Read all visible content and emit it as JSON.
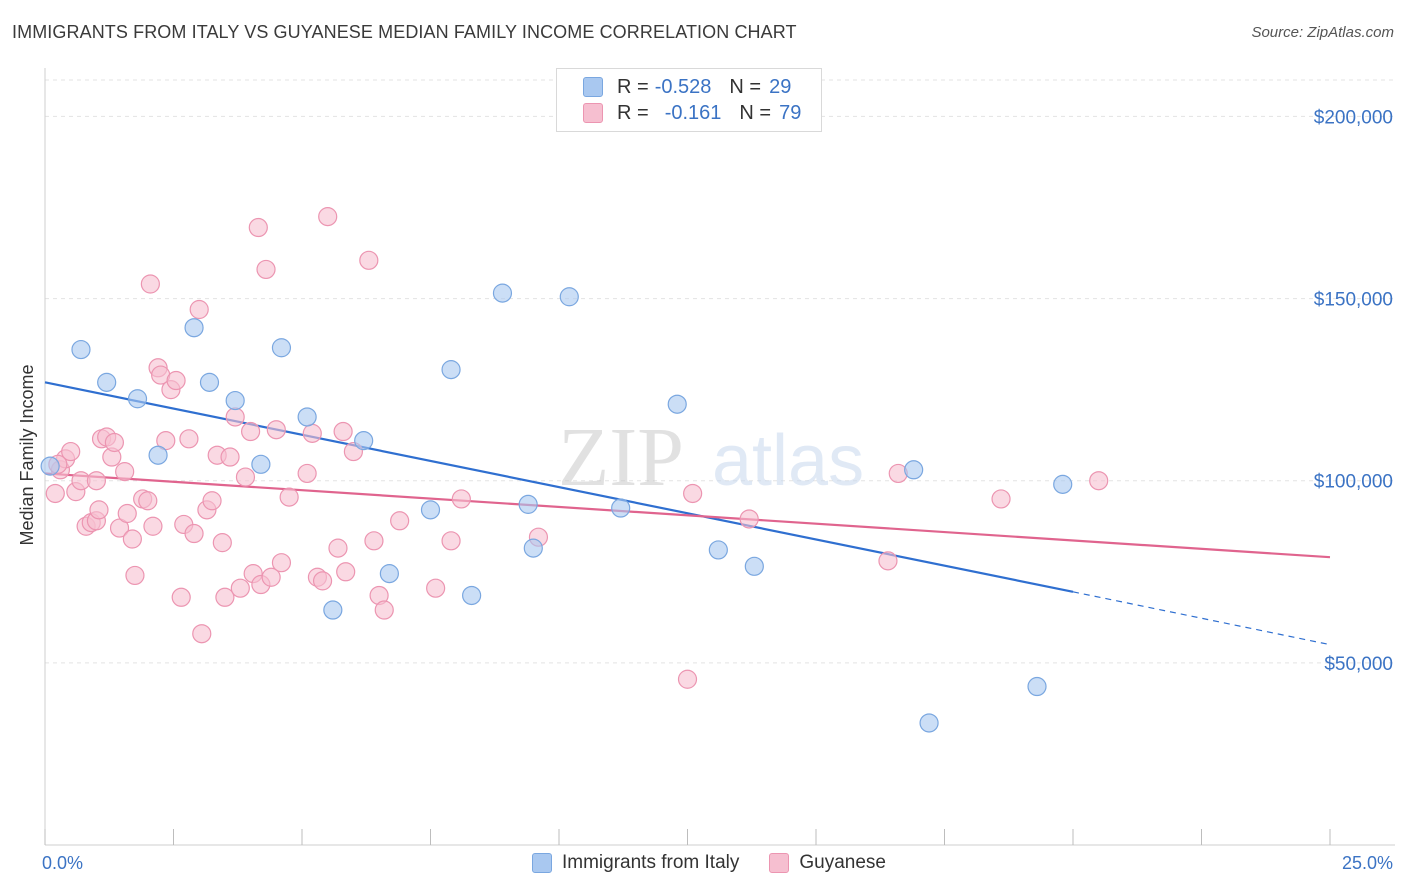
{
  "header": {
    "title": "IMMIGRANTS FROM ITALY VS GUYANESE MEDIAN FAMILY INCOME CORRELATION CHART",
    "source": "Source: ZipAtlas.com"
  },
  "legend": {
    "r_label": "R =",
    "n_label": "N =",
    "entries": [
      {
        "r": "-0.528",
        "n": "29"
      },
      {
        "r": "-0.161",
        "n": "79"
      }
    ]
  },
  "watermark": {
    "zip": "ZIP",
    "atlas": "atlas"
  },
  "chart_data": {
    "type": "scatter",
    "title": "IMMIGRANTS FROM ITALY VS GUYANESE MEDIAN FAMILY INCOME CORRELATION CHART",
    "xlabel": "",
    "ylabel": "Median Family Income",
    "xlim": [
      0,
      25
    ],
    "ylim": [
      0,
      210000
    ],
    "x_tick_labels": [
      "0.0%",
      "25.0%"
    ],
    "y_ticks": [
      50000,
      100000,
      150000,
      200000
    ],
    "y_tick_labels": [
      "$50,000",
      "$100,000",
      "$150,000",
      "$200,000"
    ],
    "grid": true,
    "colors": {
      "italy_fill": "#a9c8f0",
      "italy_stroke": "#7aa7e0",
      "italy_line": "#2f6fd0",
      "guyanese_fill": "#f6bfd0",
      "guyanese_stroke": "#ec95b1",
      "guyanese_line": "#e0648e",
      "tick": "#3b73c4"
    },
    "series": [
      {
        "name": "Immigrants from Italy",
        "r": -0.528,
        "n": 29,
        "trend": {
          "x0": 0,
          "y0": 127000,
          "x1": 20,
          "y1": 69500,
          "dash_to_x": 25,
          "dash_to_y": 55000
        },
        "points": [
          [
            0.1,
            104000
          ],
          [
            0.7,
            136000
          ],
          [
            1.2,
            127000
          ],
          [
            1.8,
            122500
          ],
          [
            2.2,
            107000
          ],
          [
            2.9,
            142000
          ],
          [
            3.2,
            127000
          ],
          [
            3.7,
            122000
          ],
          [
            4.2,
            104500
          ],
          [
            4.6,
            136500
          ],
          [
            5.1,
            117500
          ],
          [
            5.6,
            64500
          ],
          [
            6.2,
            111000
          ],
          [
            6.7,
            74500
          ],
          [
            7.5,
            92000
          ],
          [
            7.9,
            130500
          ],
          [
            8.3,
            68500
          ],
          [
            8.9,
            151500
          ],
          [
            9.4,
            93500
          ],
          [
            9.5,
            81500
          ],
          [
            10.2,
            150500
          ],
          [
            11.2,
            92500
          ],
          [
            12.3,
            121000
          ],
          [
            13.1,
            81000
          ],
          [
            13.8,
            76500
          ],
          [
            16.9,
            103000
          ],
          [
            17.2,
            33500
          ],
          [
            19.3,
            43500
          ],
          [
            19.8,
            99000
          ]
        ]
      },
      {
        "name": "Guyanese",
        "r": -0.161,
        "n": 79,
        "trend": {
          "x0": 0,
          "y0": 102000,
          "x1": 25,
          "y1": 79000
        },
        "points": [
          [
            0.2,
            96500
          ],
          [
            0.3,
            103000
          ],
          [
            0.4,
            106000
          ],
          [
            0.5,
            108000
          ],
          [
            0.6,
            97000
          ],
          [
            0.7,
            100000
          ],
          [
            0.8,
            87500
          ],
          [
            0.9,
            88500
          ],
          [
            1.0,
            89000
          ],
          [
            1.05,
            92000
          ],
          [
            1.1,
            111500
          ],
          [
            1.2,
            112000
          ],
          [
            1.3,
            106500
          ],
          [
            1.35,
            110500
          ],
          [
            1.45,
            87000
          ],
          [
            1.55,
            102500
          ],
          [
            1.6,
            91000
          ],
          [
            1.7,
            84000
          ],
          [
            1.75,
            74000
          ],
          [
            1.9,
            95000
          ],
          [
            2.0,
            94500
          ],
          [
            2.05,
            154000
          ],
          [
            2.1,
            87500
          ],
          [
            2.2,
            131000
          ],
          [
            2.25,
            129000
          ],
          [
            2.35,
            111000
          ],
          [
            2.45,
            125000
          ],
          [
            2.55,
            127500
          ],
          [
            2.65,
            68000
          ],
          [
            2.7,
            88000
          ],
          [
            2.8,
            111500
          ],
          [
            2.9,
            85500
          ],
          [
            3.0,
            147000
          ],
          [
            3.05,
            58000
          ],
          [
            3.15,
            92000
          ],
          [
            3.25,
            94500
          ],
          [
            3.35,
            107000
          ],
          [
            3.45,
            83000
          ],
          [
            3.5,
            68000
          ],
          [
            3.6,
            106500
          ],
          [
            3.7,
            117500
          ],
          [
            3.8,
            70500
          ],
          [
            3.9,
            101000
          ],
          [
            4.0,
            113500
          ],
          [
            4.05,
            74500
          ],
          [
            4.15,
            169500
          ],
          [
            4.2,
            71500
          ],
          [
            4.3,
            158000
          ],
          [
            4.4,
            73500
          ],
          [
            4.5,
            114000
          ],
          [
            4.6,
            77500
          ],
          [
            4.75,
            95500
          ],
          [
            5.1,
            102000
          ],
          [
            5.2,
            113000
          ],
          [
            5.3,
            73500
          ],
          [
            5.4,
            72500
          ],
          [
            5.5,
            172500
          ],
          [
            5.7,
            81500
          ],
          [
            5.8,
            113500
          ],
          [
            5.85,
            75000
          ],
          [
            6.0,
            108000
          ],
          [
            6.3,
            160500
          ],
          [
            6.4,
            83500
          ],
          [
            6.5,
            68500
          ],
          [
            6.6,
            64500
          ],
          [
            6.9,
            89000
          ],
          [
            7.6,
            70500
          ],
          [
            7.9,
            83500
          ],
          [
            8.1,
            95000
          ],
          [
            9.6,
            84500
          ],
          [
            12.5,
            45500
          ],
          [
            12.6,
            96500
          ],
          [
            13.7,
            89500
          ],
          [
            16.4,
            78000
          ],
          [
            16.6,
            102000
          ],
          [
            18.6,
            95000
          ],
          [
            20.5,
            100000
          ],
          [
            0.25,
            104500
          ],
          [
            1.0,
            100000
          ]
        ]
      }
    ],
    "legend_position": "top-center"
  },
  "bottom_legend": {
    "items": [
      {
        "label": "Immigrants from Italy"
      },
      {
        "label": "Guyanese"
      }
    ]
  }
}
